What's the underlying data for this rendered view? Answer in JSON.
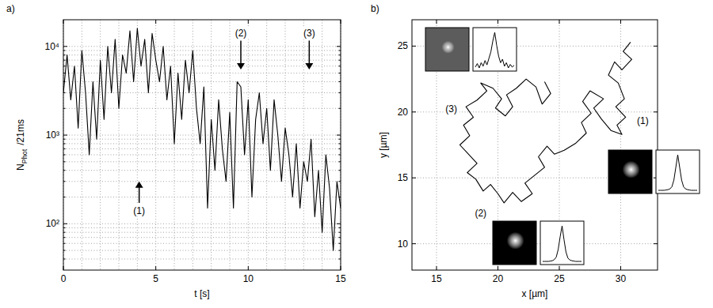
{
  "chart_data": [
    {
      "type": "line",
      "panel_label": "a)",
      "xlabel": "t [s]",
      "ylabel": {
        "main": "N",
        "subscript": "Phot",
        "suffix": "/21ms"
      },
      "x": [
        0,
        0.2,
        0.4,
        0.6,
        0.8,
        1,
        1.2,
        1.4,
        1.6,
        1.8,
        2,
        2.2,
        2.4,
        2.6,
        2.8,
        3,
        3.2,
        3.4,
        3.6,
        3.8,
        4,
        4.2,
        4.4,
        4.6,
        4.8,
        5,
        5.2,
        5.4,
        5.6,
        5.8,
        6,
        6.2,
        6.4,
        6.6,
        6.8,
        7,
        7.2,
        7.4,
        7.6,
        7.8,
        8,
        8.2,
        8.4,
        8.6,
        8.8,
        9,
        9.2,
        9.4,
        9.6,
        9.8,
        10,
        10.2,
        10.4,
        10.6,
        10.8,
        11,
        11.2,
        11.4,
        11.6,
        11.8,
        12,
        12.2,
        12.4,
        12.6,
        12.8,
        13,
        13.2,
        13.4,
        13.6,
        13.8,
        14,
        14.2,
        14.4,
        14.6,
        14.8,
        15
      ],
      "series": [
        {
          "color": "#000000",
          "values": [
            3000,
            8000,
            2500,
            6000,
            1200,
            9000,
            3000,
            600,
            4000,
            900,
            7000,
            1500,
            10000,
            3000,
            12000,
            2000,
            8000,
            5000,
            15000,
            4000,
            16000,
            6000,
            12000,
            3000,
            14000,
            7000,
            4000,
            10000,
            2500,
            6000,
            800,
            5000,
            1500,
            7000,
            3000,
            9000,
            2000,
            800,
            3500,
            150,
            1500,
            400,
            2500,
            700,
            300,
            1800,
            150,
            4000,
            3500,
            600,
            2500,
            200,
            1500,
            3000,
            800,
            2000,
            400,
            2500,
            1000,
            300,
            1200,
            600,
            200,
            800,
            150,
            500,
            300,
            900,
            120,
            400,
            80,
            600,
            250,
            50,
            300,
            150
          ]
        }
      ],
      "xlim": [
        0,
        15
      ],
      "xticks": [
        0,
        5,
        10,
        15
      ],
      "xminor": [
        1,
        2,
        3,
        4,
        6,
        7,
        8,
        9,
        11,
        12,
        13,
        14
      ],
      "ylim": [
        30,
        20000
      ],
      "yticks": [
        {
          "value": 100,
          "label": "10²"
        },
        {
          "value": 1000,
          "label": "10³"
        },
        {
          "value": 10000,
          "label": "10⁴"
        }
      ],
      "yminor": [
        40,
        50,
        60,
        70,
        80,
        90,
        200,
        300,
        400,
        500,
        600,
        700,
        800,
        900,
        2000,
        3000,
        4000,
        5000,
        6000,
        7000,
        8000,
        9000
      ],
      "log": "y",
      "grid": true,
      "annotations": [
        {
          "text": "(1)",
          "x": 4.1,
          "y": 140,
          "arrow_to": 300
        },
        {
          "text": "(2)",
          "x": 9.6,
          "y": 14000,
          "arrow_to": 5500
        },
        {
          "text": "(3)",
          "x": 13.3,
          "y": 14000,
          "arrow_to": 5500
        }
      ]
    },
    {
      "type": "line",
      "panel_label": "b)",
      "xlabel": "x [µm]",
      "ylabel": "y [µm]",
      "series": [
        {
          "color": "#000000",
          "x": [
            30.8,
            30.2,
            30.9,
            30.1,
            29.5,
            29.0,
            29.8,
            30.3,
            29.6,
            30.4,
            29.7,
            30.1,
            29.2,
            28.4,
            27.8,
            28.6,
            27.5,
            26.9,
            27.6,
            26.8,
            27.2,
            26.3,
            25.4,
            24.6,
            24.0,
            23.3,
            23.8,
            23.0,
            22.2,
            22.8,
            21.9,
            21.2,
            20.5,
            20.0,
            19.4,
            18.8,
            18.2,
            17.5,
            18.3,
            17.6,
            16.9,
            17.7,
            17.2,
            18.0,
            17.4,
            18.3,
            19.1,
            18.6,
            19.6,
            20.3,
            19.8,
            20.6,
            21.2,
            20.7,
            21.5,
            22.3,
            23.1,
            23.6,
            24.3,
            23.8
          ],
          "values": [
            25.3,
            24.6,
            24.0,
            23.2,
            23.8,
            22.8,
            22.2,
            21.0,
            20.4,
            19.6,
            19.0,
            18.3,
            18.6,
            19.5,
            20.3,
            21.0,
            21.6,
            20.8,
            19.9,
            19.2,
            18.4,
            17.6,
            17.1,
            16.8,
            17.4,
            16.6,
            15.8,
            15.2,
            14.6,
            13.8,
            13.2,
            13.9,
            13.1,
            13.8,
            14.5,
            14.0,
            14.9,
            15.4,
            16.1,
            16.8,
            17.5,
            18.2,
            19.0,
            19.6,
            20.4,
            20.9,
            21.6,
            22.2,
            21.8,
            21.0,
            20.3,
            19.7,
            20.4,
            21.3,
            21.8,
            22.5,
            21.9,
            20.6,
            21.4,
            22.3
          ]
        }
      ],
      "xlim": [
        13,
        33
      ],
      "xticks": [
        15,
        20,
        25,
        30
      ],
      "ylim": [
        8,
        27
      ],
      "yticks": [
        10,
        15,
        20,
        25
      ],
      "grid": true,
      "annotations": [
        {
          "text": "(1)",
          "x": 31.8,
          "y": 19.3
        },
        {
          "text": "(2)",
          "x": 18.6,
          "y": 12.3
        },
        {
          "text": "(3)",
          "x": 16.2,
          "y": 20.2
        }
      ],
      "insets": [
        {
          "profile": [
            2,
            2,
            2,
            2,
            3,
            4,
            6,
            12,
            30,
            65,
            100,
            65,
            30,
            12,
            6,
            4,
            3,
            2,
            2,
            2,
            2
          ]
        },
        {
          "profile": [
            2,
            2,
            2,
            2,
            3,
            4,
            7,
            14,
            35,
            70,
            100,
            62,
            28,
            11,
            6,
            4,
            3,
            2,
            2,
            2,
            2
          ]
        },
        {
          "profile": [
            20,
            28,
            18,
            30,
            22,
            35,
            25,
            40,
            55,
            80,
            100,
            70,
            45,
            30,
            38,
            22,
            30,
            18,
            26,
            20,
            24
          ]
        }
      ]
    }
  ]
}
